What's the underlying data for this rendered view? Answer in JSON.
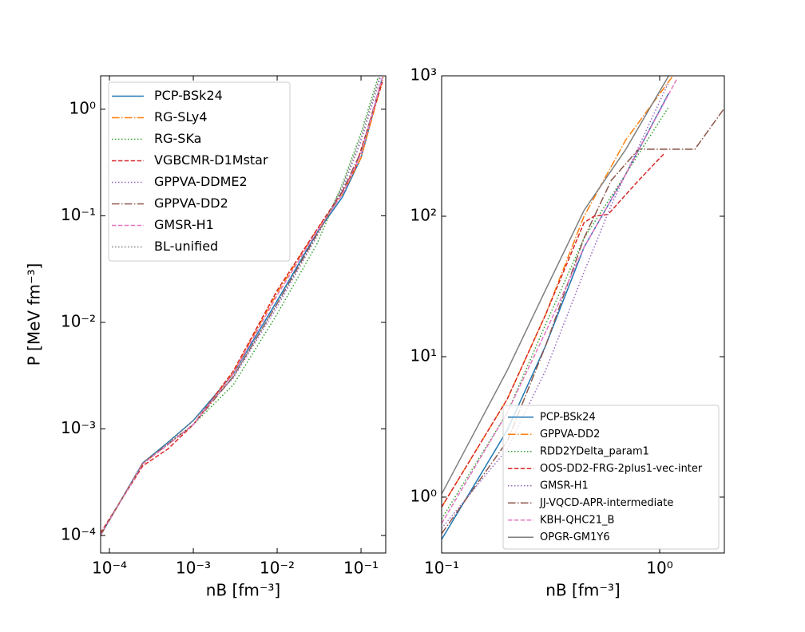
{
  "chart_data": [
    {
      "type": "line",
      "xscale": "log",
      "yscale": "log",
      "xlabel": "nB [fm⁻³]",
      "ylabel": "P [MeV fm⁻³]",
      "xlim": [
        7.85e-05,
        0.197
      ],
      "ylim": [
        6.85e-05,
        2.06
      ],
      "xticks": [
        {
          "value": 0.0001,
          "label": "10⁻⁴"
        },
        {
          "value": 0.001,
          "label": "10⁻³"
        },
        {
          "value": 0.01,
          "label": "10⁻²"
        },
        {
          "value": 0.1,
          "label": "10⁻¹"
        }
      ],
      "yticks": [
        {
          "value": 0.0001,
          "label": "10⁻⁴"
        },
        {
          "value": 0.001,
          "label": "10⁻³"
        },
        {
          "value": 0.01,
          "label": "10⁻²"
        },
        {
          "value": 0.1,
          "label": "10⁻¹"
        },
        {
          "value": 1,
          "label": "10⁰"
        }
      ],
      "legend": "upper-left",
      "series": [
        {
          "name": "PCP-BSk24",
          "color": "#1f77b4",
          "style": "solid",
          "x": [
            7.8e-05,
            0.00025,
            0.0005,
            0.001,
            0.003,
            0.01,
            0.03,
            0.06,
            0.1,
            0.18
          ],
          "values": [
            0.0001,
            0.00048,
            0.00075,
            0.0012,
            0.0033,
            0.016,
            0.07,
            0.15,
            0.35,
            2
          ]
        },
        {
          "name": "RG-SLy4",
          "color": "#ff7f0e",
          "style": "dashdot",
          "x": [
            7.8e-05,
            0.00025,
            0.0005,
            0.001,
            0.003,
            0.01,
            0.03,
            0.06,
            0.1,
            0.185
          ],
          "values": [
            0.0001,
            0.00047,
            0.00072,
            0.0011,
            0.0034,
            0.019,
            0.075,
            0.16,
            0.35,
            2
          ]
        },
        {
          "name": "RG-SKa",
          "color": "#2ca02c",
          "style": "dotted",
          "x": [
            7.8e-05,
            0.00025,
            0.0005,
            0.001,
            0.003,
            0.01,
            0.03,
            0.06,
            0.1,
            0.16
          ],
          "values": [
            0.0001,
            0.00048,
            0.00073,
            0.0011,
            0.0026,
            0.012,
            0.055,
            0.2,
            0.6,
            2
          ]
        },
        {
          "name": "VGBCMR-D1Mstar",
          "color": "#d62728",
          "style": "dashed",
          "x": [
            7.8e-05,
            0.00025,
            0.0005,
            0.001,
            0.003,
            0.01,
            0.03,
            0.06,
            0.085,
            0.18
          ],
          "values": [
            0.000105,
            0.00045,
            0.00065,
            0.0011,
            0.0035,
            0.02,
            0.075,
            0.17,
            0.28,
            1.8
          ]
        },
        {
          "name": "GPPVA-DDME2",
          "color": "#9467bd",
          "style": "dotted",
          "x": [
            7.8e-05,
            0.00025,
            0.0005,
            0.001,
            0.003,
            0.01,
            0.03,
            0.06,
            0.1,
            0.17
          ],
          "values": [
            0.0001,
            0.00048,
            0.00074,
            0.0012,
            0.003,
            0.014,
            0.065,
            0.18,
            0.5,
            2
          ]
        },
        {
          "name": "GPPVA-DD2",
          "color": "#8c564b",
          "style": "dashdot",
          "x": [
            7.8e-05,
            0.00025,
            0.0005,
            0.001,
            0.003,
            0.01,
            0.03,
            0.06,
            0.1,
            0.18
          ],
          "values": [
            0.0001,
            0.00048,
            0.00072,
            0.0011,
            0.0031,
            0.015,
            0.068,
            0.17,
            0.4,
            2
          ]
        },
        {
          "name": "GMSR-H1",
          "color": "#e377c2",
          "style": "dashed",
          "x": [
            7.8e-05,
            0.00025,
            0.0005,
            0.001,
            0.003,
            0.01,
            0.03,
            0.06,
            0.1,
            0.18
          ],
          "values": [
            0.0001,
            0.00047,
            0.00071,
            0.0011,
            0.0033,
            0.018,
            0.072,
            0.16,
            0.38,
            2
          ]
        },
        {
          "name": "BL-unified",
          "color": "#7f7f7f",
          "style": "dotted",
          "x": [
            7.8e-05,
            0.00025,
            0.0005,
            0.001,
            0.003,
            0.01,
            0.03,
            0.06,
            0.1,
            0.165
          ],
          "values": [
            0.0001,
            0.00048,
            0.00074,
            0.0012,
            0.0031,
            0.015,
            0.065,
            0.19,
            0.55,
            2
          ]
        }
      ]
    },
    {
      "type": "line",
      "xscale": "log",
      "yscale": "log",
      "xlabel": "nB [fm⁻³]",
      "xlim": [
        0.1,
        1.98
      ],
      "ylim": [
        0.4,
        1000
      ],
      "xticks": [
        {
          "value": 0.1,
          "label": "10⁻¹"
        },
        {
          "value": 1,
          "label": "10⁰"
        }
      ],
      "yticks": [
        {
          "value": 1,
          "label": "10⁰"
        },
        {
          "value": 10,
          "label": "10¹"
        },
        {
          "value": 100,
          "label": "10²"
        },
        {
          "value": 1000,
          "label": "10³"
        }
      ],
      "legend": "lower-right",
      "series": [
        {
          "name": "PCP-BSk24",
          "color": "#1f77b4",
          "style": "solid",
          "x": [
            0.1,
            0.2,
            0.3,
            0.45,
            0.7,
            1.1
          ],
          "values": [
            0.5,
            3,
            12,
            60,
            200,
            750
          ]
        },
        {
          "name": "GPPVA-DD2",
          "color": "#ff7f0e",
          "style": "dashdot",
          "x": [
            0.1,
            0.2,
            0.3,
            0.45,
            0.7,
            1.15
          ],
          "values": [
            0.85,
            5,
            20,
            100,
            350,
            1000
          ]
        },
        {
          "name": "RDD2YDelta_param1",
          "color": "#2ca02c",
          "style": "dotted",
          "x": [
            0.1,
            0.2,
            0.3,
            0.45,
            0.7,
            1.1
          ],
          "values": [
            0.7,
            4,
            17,
            70,
            200,
            600
          ]
        },
        {
          "name": "OOS-DD2-FRG-2plus1-vec-inter",
          "color": "#d62728",
          "style": "dashed",
          "x": [
            0.1,
            0.2,
            0.3,
            0.45,
            0.5,
            0.58,
            0.8,
            1.05
          ],
          "values": [
            0.85,
            5,
            20,
            90,
            100,
            103,
            180,
            280
          ]
        },
        {
          "name": "GMSR-H1",
          "color": "#9467bd",
          "style": "dotted",
          "x": [
            0.1,
            0.2,
            0.3,
            0.45,
            0.6,
            1.1
          ],
          "values": [
            0.6,
            2.2,
            8,
            40,
            120,
            900
          ]
        },
        {
          "name": "JJ-VQCD-APR-intermediate",
          "color": "#8c564b",
          "style": "dashdot",
          "x": [
            0.1,
            0.2,
            0.3,
            0.45,
            0.6,
            0.8,
            1.45,
            2
          ],
          "values": [
            0.55,
            2.5,
            12,
            70,
            180,
            300,
            300,
            600
          ]
        },
        {
          "name": "KBH-QHC21_B",
          "color": "#e377c2",
          "style": "dashed",
          "x": [
            0.1,
            0.2,
            0.3,
            0.45,
            0.7,
            1.2
          ],
          "values": [
            0.65,
            4,
            15,
            60,
            200,
            950
          ]
        },
        {
          "name": "OPGR-GM1Y6",
          "color": "#7f7f7f",
          "style": "solid",
          "x": [
            0.1,
            0.2,
            0.3,
            0.45,
            0.7,
            1.1
          ],
          "values": [
            1.05,
            8,
            30,
            110,
            300,
            1000
          ]
        }
      ]
    }
  ]
}
